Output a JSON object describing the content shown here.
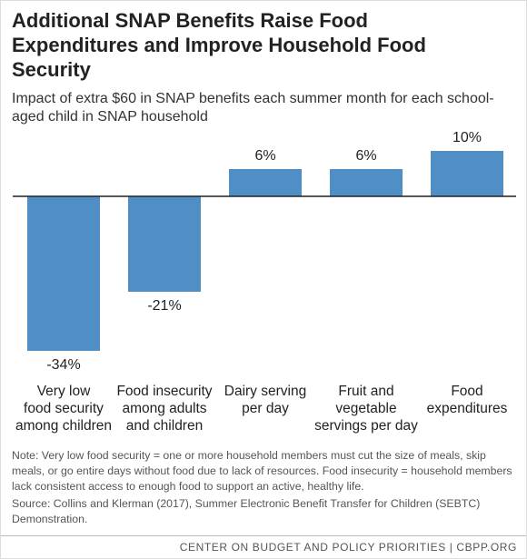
{
  "chart_data": {
    "type": "bar",
    "title": "Additional SNAP Benefits Raise Food Expenditures and Improve Household Food Security",
    "subtitle": "Impact of extra $60 in SNAP benefits each summer month for each school-aged child in SNAP household",
    "categories": [
      "Very low\nfood security\namong children",
      "Food insecurity\namong adults\nand children",
      "Dairy serving\nper day",
      "Fruit and\nvegetable\nservings per day",
      "Food expenditures"
    ],
    "values": [
      -34,
      -21,
      6,
      6,
      10
    ],
    "value_labels": [
      "-34%",
      "-21%",
      "6%",
      "6%",
      "10%"
    ],
    "color": "#4f8fc6",
    "note": "Note:  Very low food security = one or more household members must cut the size of meals, skip meals, or go entire days without food due to lack of resources. Food insecurity = household members lack consistent access to enough food to support an active, healthy life.",
    "source": "Source: Collins and Klerman (2017), Summer Electronic Benefit Transfer for Children (SEBTC) Demonstration.",
    "footer": "CENTER ON BUDGET AND POLICY PRIORITIES | CBPP.ORG"
  }
}
